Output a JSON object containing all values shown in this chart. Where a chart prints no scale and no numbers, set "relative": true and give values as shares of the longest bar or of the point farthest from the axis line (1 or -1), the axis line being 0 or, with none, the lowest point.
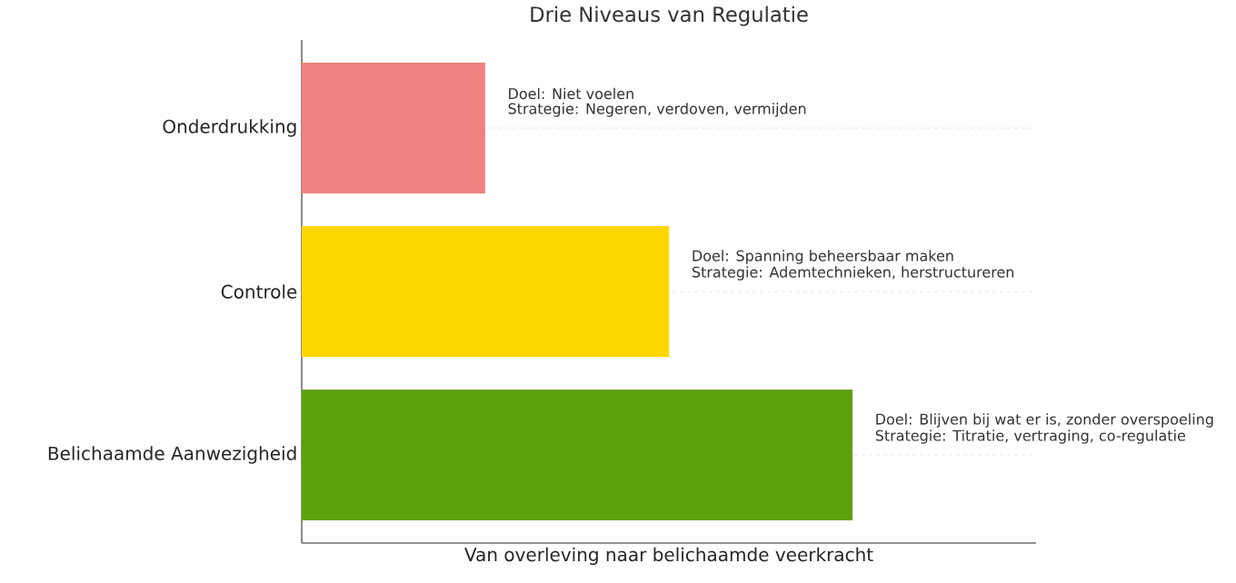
{
  "chart_data": {
    "type": "bar",
    "orientation": "horizontal",
    "relative": true,
    "grid": "y",
    "title": "Drie Niveaus van Regulatie",
    "xlabel": "Van overleving naar belichaamde veerkracht",
    "categories": [
      "Onderdrukking",
      "Controle",
      "Belichaamde Aanwezigheid"
    ],
    "values": [
      0.333,
      0.667,
      1
    ],
    "colors": [
      "#f08080",
      "#ffd700",
      "#5ea10f"
    ],
    "annotations": [
      {
        "text": "Doel: Niet voelen",
        "x": 0.333,
        "y": "Onderdrukking"
      },
      {
        "text": "Strategie: Negeren, verdoven, vermijden",
        "x": 0.333,
        "y": "Onderdrukking"
      },
      {
        "text": "Doel: Spanning beheersbaar maken",
        "x": 0.667,
        "y": "Controle"
      },
      {
        "text": "Strategie: Ademtechnieken, herstructureren",
        "x": 0.667,
        "y": "Controle"
      },
      {
        "text": "Doel: Blijven bij wat er is, zonder overspoeling",
        "x": 1,
        "y": "Belichaamde Aanwezigheid"
      },
      {
        "text": "Strategie: Titratie, vertraging, co-regulatie",
        "x": 1,
        "y": "Belichaamde Aanwezigheid"
      }
    ]
  }
}
